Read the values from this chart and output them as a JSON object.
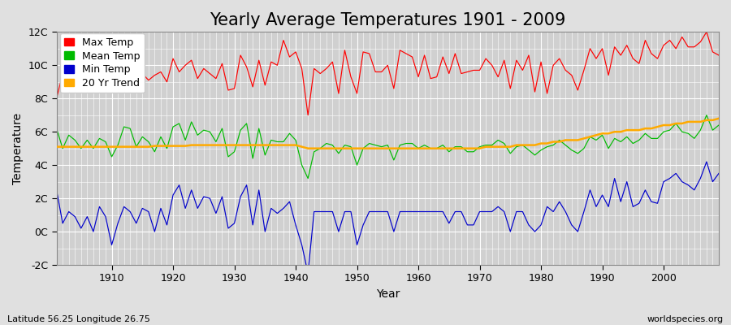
{
  "title": "Yearly Average Temperatures 1901 - 2009",
  "xlabel": "Year",
  "ylabel": "Temperature",
  "subtitle_lat": "Latitude 56.25 Longitude 26.75",
  "watermark": "worldspecies.org",
  "years": [
    1901,
    1902,
    1903,
    1904,
    1905,
    1906,
    1907,
    1908,
    1909,
    1910,
    1911,
    1912,
    1913,
    1914,
    1915,
    1916,
    1917,
    1918,
    1919,
    1920,
    1921,
    1922,
    1923,
    1924,
    1925,
    1926,
    1927,
    1928,
    1929,
    1930,
    1931,
    1932,
    1933,
    1934,
    1935,
    1936,
    1937,
    1938,
    1939,
    1940,
    1941,
    1942,
    1943,
    1944,
    1945,
    1946,
    1947,
    1948,
    1949,
    1950,
    1951,
    1952,
    1953,
    1954,
    1955,
    1956,
    1957,
    1958,
    1959,
    1960,
    1961,
    1962,
    1963,
    1964,
    1965,
    1966,
    1967,
    1968,
    1969,
    1970,
    1971,
    1972,
    1973,
    1974,
    1975,
    1976,
    1977,
    1978,
    1979,
    1980,
    1981,
    1982,
    1983,
    1984,
    1985,
    1986,
    1987,
    1988,
    1989,
    1990,
    1991,
    1992,
    1993,
    1994,
    1995,
    1996,
    1997,
    1998,
    1999,
    2000,
    2001,
    2002,
    2003,
    2004,
    2005,
    2006,
    2007,
    2008,
    2009
  ],
  "max_temp": [
    8.0,
    9.5,
    9.0,
    9.2,
    9.5,
    9.0,
    9.3,
    9.6,
    9.2,
    8.5,
    9.0,
    9.3,
    9.8,
    9.2,
    9.5,
    9.1,
    9.4,
    9.6,
    9.0,
    10.4,
    9.6,
    10.0,
    10.3,
    9.2,
    9.8,
    9.5,
    9.2,
    10.1,
    8.5,
    8.6,
    10.6,
    9.9,
    8.7,
    10.3,
    8.8,
    10.2,
    10.0,
    11.5,
    10.5,
    10.8,
    9.8,
    7.0,
    9.8,
    9.5,
    9.8,
    10.2,
    8.3,
    10.9,
    9.3,
    8.3,
    10.8,
    10.7,
    9.6,
    9.6,
    10.0,
    8.6,
    10.9,
    10.7,
    10.5,
    9.3,
    10.6,
    9.2,
    9.3,
    10.5,
    9.5,
    10.7,
    9.5,
    9.6,
    9.7,
    9.7,
    10.4,
    10.0,
    9.3,
    10.3,
    8.6,
    10.3,
    9.7,
    10.6,
    8.4,
    10.2,
    8.3,
    10.0,
    10.4,
    9.7,
    9.4,
    8.5,
    9.7,
    11.0,
    10.4,
    11.0,
    9.4,
    11.1,
    10.6,
    11.2,
    10.4,
    10.1,
    11.5,
    10.7,
    10.4,
    11.2,
    11.5,
    11.0,
    11.7,
    11.1,
    11.1,
    11.4,
    12.0,
    10.8,
    10.6
  ],
  "mean_temp": [
    6.2,
    5.0,
    5.8,
    5.5,
    5.0,
    5.5,
    5.0,
    5.6,
    5.4,
    4.5,
    5.2,
    6.3,
    6.2,
    5.1,
    5.7,
    5.4,
    4.8,
    5.7,
    5.0,
    6.3,
    6.5,
    5.5,
    6.6,
    5.8,
    6.1,
    6.0,
    5.4,
    6.2,
    4.5,
    4.8,
    6.1,
    6.5,
    4.4,
    6.2,
    4.6,
    5.5,
    5.4,
    5.4,
    5.9,
    5.5,
    4.0,
    3.2,
    4.8,
    5.0,
    5.3,
    5.2,
    4.7,
    5.2,
    5.1,
    4.0,
    5.0,
    5.3,
    5.2,
    5.1,
    5.2,
    4.3,
    5.2,
    5.3,
    5.3,
    5.0,
    5.2,
    5.0,
    5.0,
    5.2,
    4.8,
    5.1,
    5.1,
    4.8,
    4.8,
    5.1,
    5.2,
    5.2,
    5.5,
    5.3,
    4.7,
    5.1,
    5.2,
    4.9,
    4.6,
    4.9,
    5.1,
    5.2,
    5.5,
    5.2,
    4.9,
    4.7,
    5.0,
    5.7,
    5.5,
    5.8,
    5.0,
    5.6,
    5.4,
    5.7,
    5.3,
    5.5,
    5.9,
    5.6,
    5.6,
    6.0,
    6.1,
    6.5,
    6.0,
    5.9,
    5.6,
    6.1,
    7.0,
    6.1,
    6.4
  ],
  "min_temp": [
    2.5,
    0.5,
    1.2,
    0.9,
    0.2,
    0.9,
    0.0,
    1.5,
    0.9,
    -0.8,
    0.5,
    1.5,
    1.2,
    0.5,
    1.4,
    1.2,
    0.0,
    1.4,
    0.4,
    2.2,
    2.8,
    1.4,
    2.5,
    1.4,
    2.1,
    2.0,
    1.1,
    2.1,
    0.2,
    0.5,
    2.1,
    2.8,
    0.4,
    2.5,
    0.0,
    1.4,
    1.1,
    1.4,
    1.8,
    0.4,
    -0.8,
    -2.5,
    1.2,
    1.2,
    1.2,
    1.2,
    0.0,
    1.2,
    1.2,
    -0.8,
    0.4,
    1.2,
    1.2,
    1.2,
    1.2,
    0.0,
    1.2,
    1.2,
    1.2,
    1.2,
    1.2,
    1.2,
    1.2,
    1.2,
    0.5,
    1.2,
    1.2,
    0.4,
    0.4,
    1.2,
    1.2,
    1.2,
    1.5,
    1.2,
    0.0,
    1.2,
    1.2,
    0.4,
    0.0,
    0.4,
    1.5,
    1.2,
    1.8,
    1.2,
    0.4,
    0.0,
    1.2,
    2.5,
    1.5,
    2.2,
    1.5,
    3.2,
    1.8,
    3.0,
    1.5,
    1.7,
    2.5,
    1.8,
    1.7,
    3.0,
    3.2,
    3.5,
    3.0,
    2.8,
    2.5,
    3.2,
    4.2,
    3.0,
    3.5
  ],
  "trend": [
    5.1,
    5.1,
    5.1,
    5.1,
    5.1,
    5.1,
    5.1,
    5.1,
    5.1,
    5.1,
    5.1,
    5.1,
    5.1,
    5.1,
    5.1,
    5.1,
    5.15,
    5.15,
    5.15,
    5.15,
    5.15,
    5.15,
    5.2,
    5.2,
    5.2,
    5.2,
    5.2,
    5.2,
    5.2,
    5.2,
    5.2,
    5.2,
    5.2,
    5.2,
    5.2,
    5.2,
    5.2,
    5.2,
    5.2,
    5.2,
    5.1,
    5.0,
    5.0,
    5.0,
    5.0,
    5.0,
    5.0,
    5.0,
    5.0,
    5.0,
    5.0,
    5.0,
    5.0,
    5.0,
    5.0,
    5.0,
    5.0,
    5.0,
    5.0,
    5.0,
    5.0,
    5.0,
    5.0,
    5.0,
    5.0,
    5.0,
    5.0,
    5.0,
    5.0,
    5.0,
    5.1,
    5.1,
    5.1,
    5.1,
    5.1,
    5.2,
    5.2,
    5.2,
    5.2,
    5.3,
    5.3,
    5.4,
    5.4,
    5.5,
    5.5,
    5.5,
    5.6,
    5.7,
    5.8,
    5.9,
    5.9,
    6.0,
    6.0,
    6.1,
    6.1,
    6.1,
    6.2,
    6.2,
    6.3,
    6.4,
    6.4,
    6.5,
    6.5,
    6.6,
    6.6,
    6.6,
    6.7,
    6.7,
    6.8
  ],
  "max_color": "#ff0000",
  "mean_color": "#00bb00",
  "min_color": "#0000cc",
  "trend_color": "#ffaa00",
  "bg_color": "#e0e0e0",
  "plot_bg_color": "#d0d0d0",
  "grid_color": "#ffffff",
  "ylim": [
    -2,
    12
  ],
  "yticks": [
    -2,
    0,
    2,
    4,
    6,
    8,
    10,
    12
  ],
  "ytick_labels": [
    "-2C",
    "0C",
    "2C",
    "4C",
    "6C",
    "8C",
    "10C",
    "12C"
  ],
  "xlim": [
    1901,
    2009
  ],
  "title_fontsize": 15,
  "legend_fontsize": 9,
  "axis_fontsize": 10,
  "tick_fontsize": 9
}
